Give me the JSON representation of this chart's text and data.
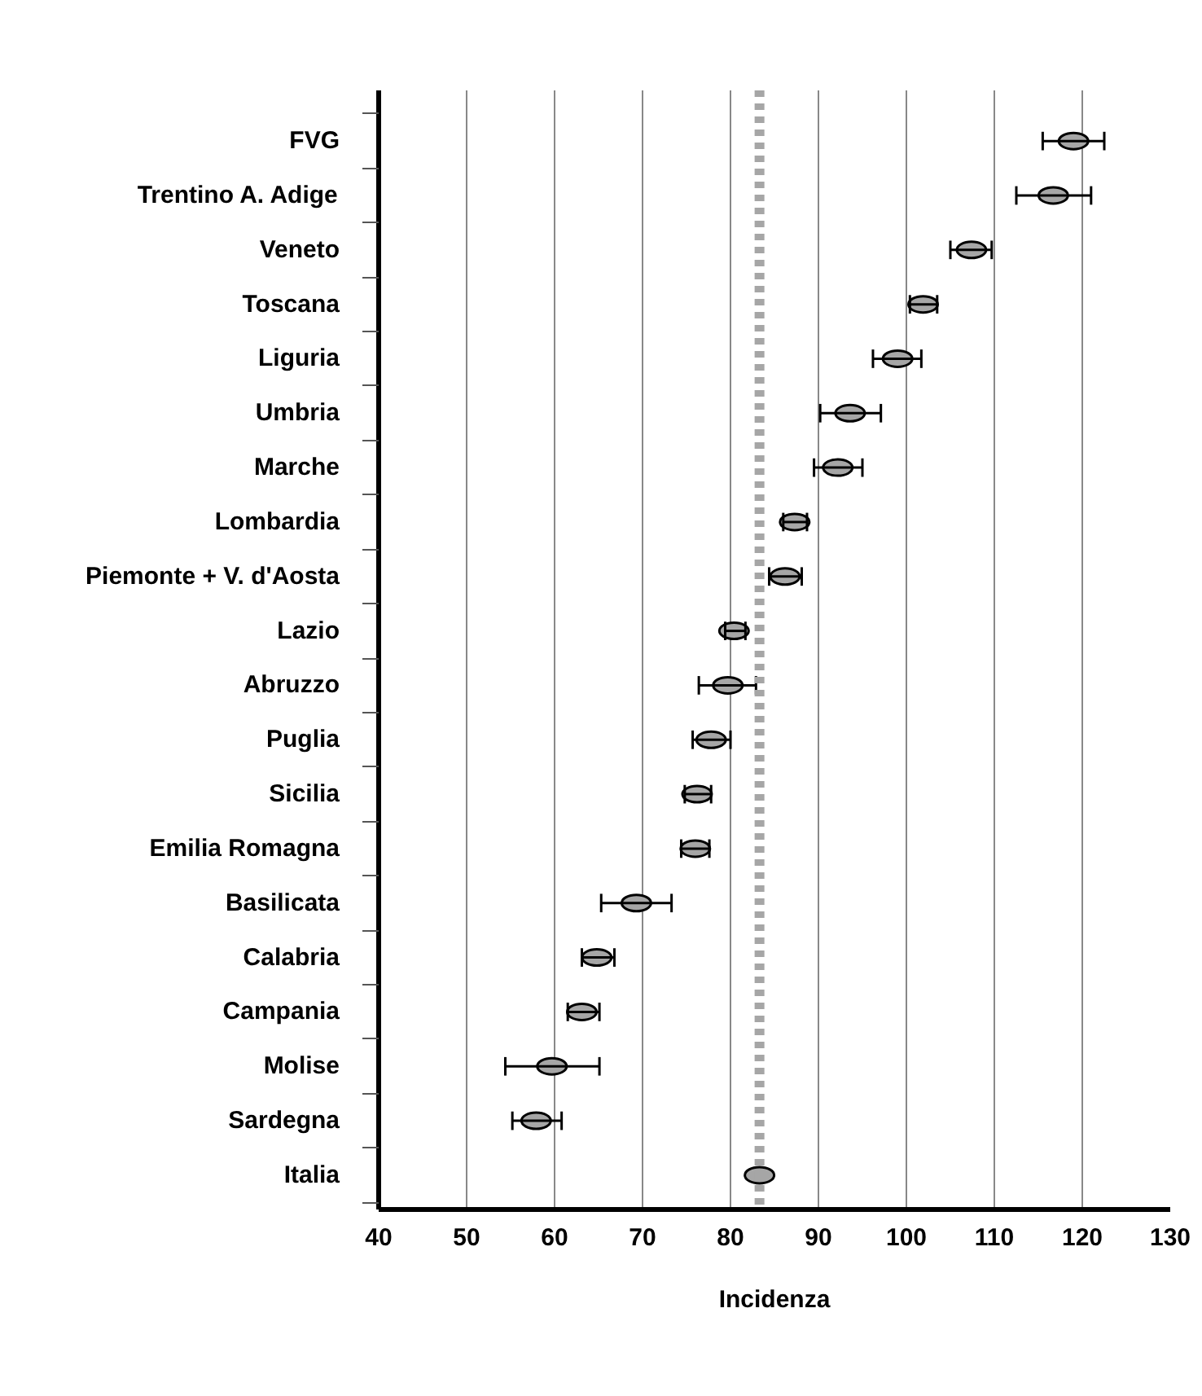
{
  "chart_data": {
    "type": "scatter",
    "orientation": "horizontal",
    "xlabel": "Incidenza",
    "categories": [
      "FVG",
      "Trentino A. Adige",
      "Veneto",
      "Toscana",
      "Liguria",
      "Umbria",
      "Marche",
      "Lombardia",
      "Piemonte + V. d'Aosta",
      "Lazio",
      "Abruzzo",
      "Puglia",
      "Sicilia",
      "Emilia Romagna",
      "Basilicata",
      "Calabria",
      "Campania",
      "Molise",
      "Sardegna",
      "Italia"
    ],
    "values": [
      119,
      116.7,
      107.4,
      101.9,
      99,
      93.6,
      92.2,
      87.3,
      86.2,
      80.4,
      79.7,
      77.8,
      76.2,
      76,
      69.3,
      64.8,
      63.1,
      59.7,
      57.9,
      83.3
    ],
    "errors": [
      [
        115.5,
        122.5
      ],
      [
        112.5,
        121
      ],
      [
        105,
        109.7
      ],
      [
        100.4,
        103.5
      ],
      [
        96.2,
        101.7
      ],
      [
        90.2,
        97.1
      ],
      [
        89.5,
        95
      ],
      [
        86,
        88.7
      ],
      [
        84.4,
        88.1
      ],
      [
        79.4,
        81.7
      ],
      [
        76.4,
        82.9
      ],
      [
        75.7,
        80
      ],
      [
        74.8,
        77.8
      ],
      [
        74.4,
        77.6
      ],
      [
        65.3,
        73.3
      ],
      [
        63.1,
        66.8
      ],
      [
        61.5,
        65.1
      ],
      [
        54.4,
        65.1
      ],
      [
        55.2,
        60.8
      ],
      null
    ],
    "color": "#a6a6a6",
    "marker": "circle",
    "xlim": [
      40,
      130
    ],
    "xticks": [
      40,
      50,
      60,
      70,
      80,
      90,
      100,
      110,
      120,
      130
    ],
    "grid": "x",
    "ref_lines": [
      {
        "axis": "x",
        "value": 83.3,
        "color": "#a6a6a6",
        "line_style": "dotted"
      }
    ]
  }
}
